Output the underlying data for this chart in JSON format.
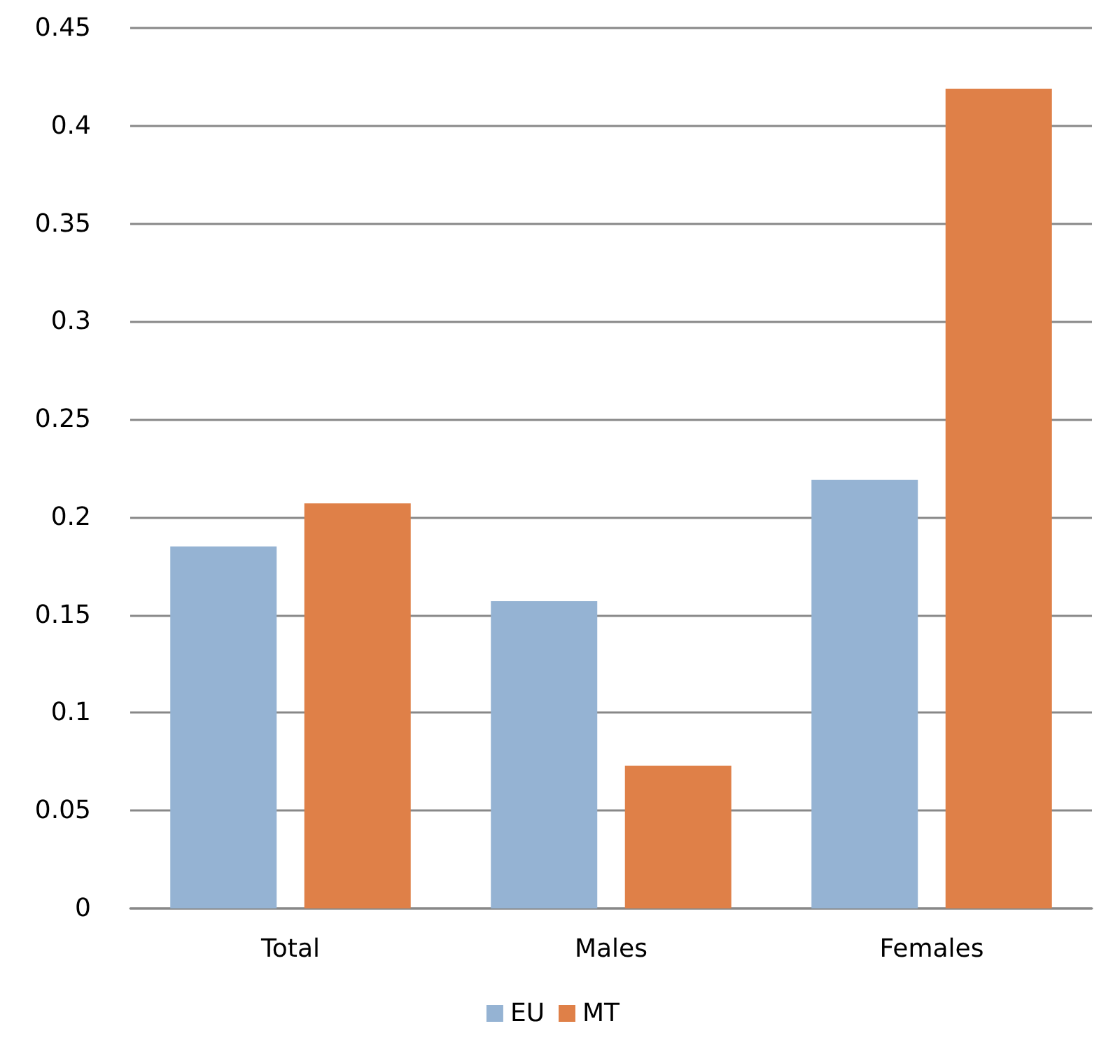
{
  "chart_data": {
    "type": "bar",
    "categories": [
      "Total",
      "Males",
      "Females"
    ],
    "series": [
      {
        "name": "EU",
        "color": "#95b3d3",
        "values": [
          0.185,
          0.157,
          0.219
        ]
      },
      {
        "name": "MT",
        "color": "#df8048",
        "values": [
          0.207,
          0.073,
          0.419
        ]
      }
    ],
    "ylim": [
      0,
      0.45
    ],
    "yticks": [
      0,
      0.05,
      0.1,
      0.15,
      0.2,
      0.25,
      0.3,
      0.35,
      0.4,
      0.45
    ],
    "grid": "y",
    "legend": "bottom"
  }
}
